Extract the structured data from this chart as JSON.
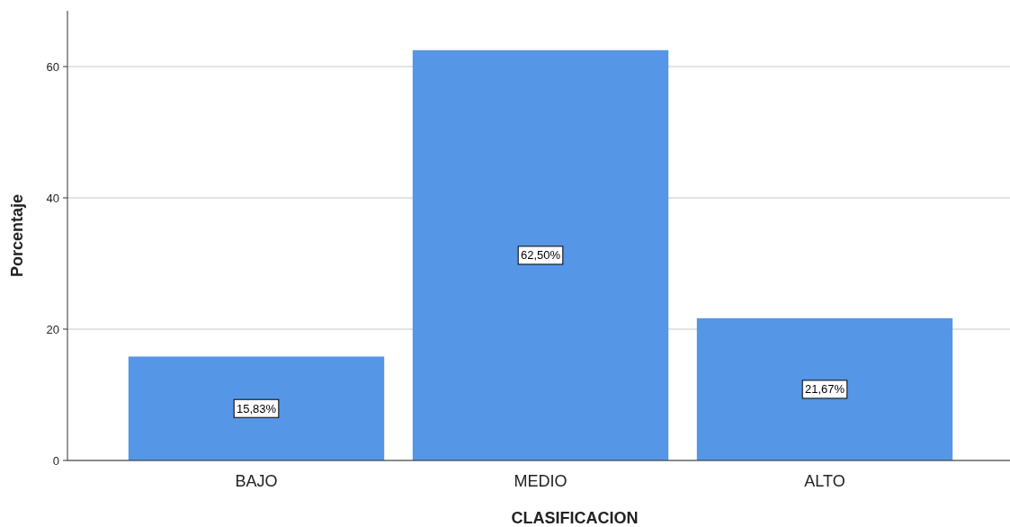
{
  "chart_data": {
    "type": "bar",
    "xlabel": "CLASIFICACION",
    "ylabel": "Porcentaje",
    "categories": [
      "BAJO",
      "MEDIO",
      "ALTO"
    ],
    "values": [
      15.83,
      62.5,
      21.67
    ],
    "value_labels": [
      "15,83%",
      "62,50%",
      "21,67%"
    ],
    "color": "#5596e6",
    "ylim": [
      0,
      68.5
    ],
    "yticks": [
      0,
      20,
      40,
      60
    ],
    "grid": "y"
  }
}
